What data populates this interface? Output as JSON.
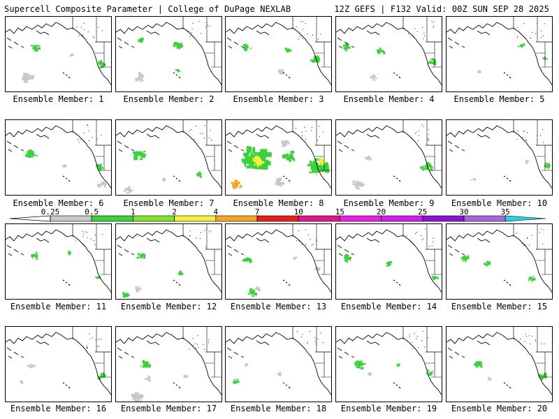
{
  "header": {
    "left": "Supercell Composite Parameter | College of DuPage NEXLAB",
    "right": "12Z GEFS | F132 Valid: 00Z SUN SEP 28 2025"
  },
  "colorbar": {
    "ticks": [
      "0.25",
      "0.5",
      "1",
      "2",
      "4",
      "7",
      "10",
      "15",
      "20",
      "25",
      "30",
      "35"
    ],
    "colors": [
      "#c8c8c8",
      "#3ad13a",
      "#7fe32a",
      "#f2f23c",
      "#f5a623",
      "#e81d1d",
      "#e0148c",
      "#ee1ee6",
      "#d21ee6",
      "#8c14d2",
      "#a864dc",
      "#28d2e6"
    ]
  },
  "members": [
    {
      "label": "Ensemble Member: 1",
      "blobs": [
        [
          "green",
          0.28,
          0.4,
          0.04
        ],
        [
          "green",
          0.9,
          0.62,
          0.04
        ],
        [
          "gray",
          0.2,
          0.8,
          0.06
        ],
        [
          "gray",
          0.62,
          0.5,
          0.02
        ]
      ]
    },
    {
      "label": "Ensemble Member: 2",
      "blobs": [
        [
          "green",
          0.24,
          0.3,
          0.03
        ],
        [
          "green",
          0.58,
          0.38,
          0.04
        ],
        [
          "gray",
          0.22,
          0.8,
          0.05
        ],
        [
          "green",
          0.58,
          0.7,
          0.02
        ]
      ]
    },
    {
      "label": "Ensemble Member: 3",
      "blobs": [
        [
          "green",
          0.2,
          0.4,
          0.04
        ],
        [
          "green",
          0.58,
          0.44,
          0.03
        ],
        [
          "green",
          0.85,
          0.57,
          0.05
        ],
        [
          "gray",
          0.52,
          0.72,
          0.03
        ]
      ]
    },
    {
      "label": "Ensemble Member: 4",
      "blobs": [
        [
          "green",
          0.1,
          0.4,
          0.04
        ],
        [
          "green",
          0.42,
          0.45,
          0.04
        ],
        [
          "green",
          0.9,
          0.6,
          0.04
        ],
        [
          "gray",
          0.35,
          0.8,
          0.03
        ]
      ]
    },
    {
      "label": "Ensemble Member: 5",
      "blobs": [
        [
          "green",
          0.7,
          0.38,
          0.03
        ],
        [
          "green",
          0.92,
          0.55,
          0.02
        ],
        [
          "gray",
          0.3,
          0.72,
          0.02
        ]
      ]
    },
    {
      "label": "Ensemble Member: 6",
      "blobs": [
        [
          "green",
          0.24,
          0.45,
          0.05
        ],
        [
          "green",
          0.88,
          0.62,
          0.04
        ],
        [
          "gray",
          0.9,
          0.85,
          0.04
        ],
        [
          "gray",
          0.55,
          0.6,
          0.02
        ]
      ]
    },
    {
      "label": "Ensemble Member: 7",
      "blobs": [
        [
          "green",
          0.22,
          0.45,
          0.06
        ],
        [
          "green",
          0.78,
          0.72,
          0.03
        ],
        [
          "gray",
          0.12,
          0.92,
          0.04
        ],
        [
          "gray",
          0.45,
          0.78,
          0.02
        ]
      ]
    },
    {
      "label": "Ensemble Member: 8",
      "blobs": [
        [
          "green",
          0.28,
          0.5,
          0.13
        ],
        [
          "yellow",
          0.3,
          0.55,
          0.06
        ],
        [
          "orange",
          0.1,
          0.85,
          0.05
        ],
        [
          "green",
          0.6,
          0.48,
          0.06
        ],
        [
          "green",
          0.86,
          0.62,
          0.1
        ],
        [
          "yellow",
          0.9,
          0.55,
          0.04
        ],
        [
          "gray",
          0.5,
          0.82,
          0.05
        ],
        [
          "gray",
          0.56,
          0.3,
          0.04
        ]
      ]
    },
    {
      "label": "Ensemble Member: 9",
      "blobs": [
        [
          "green",
          0.85,
          0.62,
          0.05
        ],
        [
          "gray",
          0.2,
          0.85,
          0.05
        ],
        [
          "gray",
          0.3,
          0.5,
          0.03
        ]
      ]
    },
    {
      "label": "Ensemble Member: 10",
      "blobs": [
        [
          "green",
          0.95,
          0.6,
          0.03
        ],
        [
          "gray",
          0.75,
          0.55,
          0.02
        ],
        [
          "gray",
          0.25,
          0.78,
          0.02
        ]
      ]
    },
    {
      "label": "Ensemble Member: 11",
      "blobs": [
        [
          "green",
          0.28,
          0.42,
          0.04
        ],
        [
          "green",
          0.6,
          0.38,
          0.02
        ],
        [
          "green",
          0.86,
          0.7,
          0.02
        ]
      ]
    },
    {
      "label": "Ensemble Member: 12",
      "blobs": [
        [
          "green",
          0.24,
          0.42,
          0.04
        ],
        [
          "green",
          0.6,
          0.65,
          0.03
        ],
        [
          "green",
          0.08,
          0.92,
          0.04
        ],
        [
          "gray",
          0.2,
          0.85,
          0.03
        ]
      ]
    },
    {
      "label": "Ensemble Member: 13",
      "blobs": [
        [
          "green",
          0.2,
          0.48,
          0.04
        ],
        [
          "gray",
          0.65,
          0.45,
          0.02
        ],
        [
          "gray",
          0.85,
          0.58,
          0.03
        ],
        [
          "green",
          0.25,
          0.9,
          0.04
        ],
        [
          "gray",
          0.3,
          0.85,
          0.03
        ]
      ]
    },
    {
      "label": "Ensemble Member: 14",
      "blobs": [
        [
          "green",
          0.1,
          0.45,
          0.04
        ],
        [
          "green",
          0.5,
          0.52,
          0.03
        ],
        [
          "green",
          0.92,
          0.7,
          0.03
        ]
      ]
    },
    {
      "label": "Ensemble Member: 15",
      "blobs": [
        [
          "green",
          0.18,
          0.45,
          0.04
        ],
        [
          "green",
          0.38,
          0.52,
          0.03
        ],
        [
          "green",
          0.8,
          0.72,
          0.03
        ]
      ]
    },
    {
      "label": "Ensemble Member: 16",
      "blobs": [
        [
          "gray",
          0.24,
          0.52,
          0.03
        ],
        [
          "green",
          0.9,
          0.65,
          0.04
        ],
        [
          "gray",
          0.15,
          0.72,
          0.02
        ]
      ]
    },
    {
      "label": "Ensemble Member: 17",
      "blobs": [
        [
          "green",
          0.28,
          0.5,
          0.05
        ],
        [
          "gray",
          0.3,
          0.68,
          0.03
        ],
        [
          "gray",
          0.2,
          0.92,
          0.06
        ],
        [
          "gray",
          0.65,
          0.65,
          0.02
        ]
      ]
    },
    {
      "label": "Ensemble Member: 18",
      "blobs": [
        [
          "gray",
          0.2,
          0.5,
          0.02
        ],
        [
          "green",
          0.1,
          0.72,
          0.03
        ],
        [
          "gray",
          0.5,
          0.62,
          0.02
        ]
      ]
    },
    {
      "label": "Ensemble Member: 19",
      "blobs": [
        [
          "green",
          0.22,
          0.5,
          0.05
        ],
        [
          "green",
          0.58,
          0.5,
          0.02
        ],
        [
          "green",
          0.88,
          0.6,
          0.03
        ],
        [
          "gray",
          0.32,
          0.62,
          0.02
        ]
      ]
    },
    {
      "label": "Ensemble Member: 20",
      "blobs": [
        [
          "green",
          0.3,
          0.5,
          0.04
        ],
        [
          "green",
          0.9,
          0.65,
          0.04
        ],
        [
          "gray",
          0.4,
          0.68,
          0.02
        ]
      ]
    }
  ]
}
